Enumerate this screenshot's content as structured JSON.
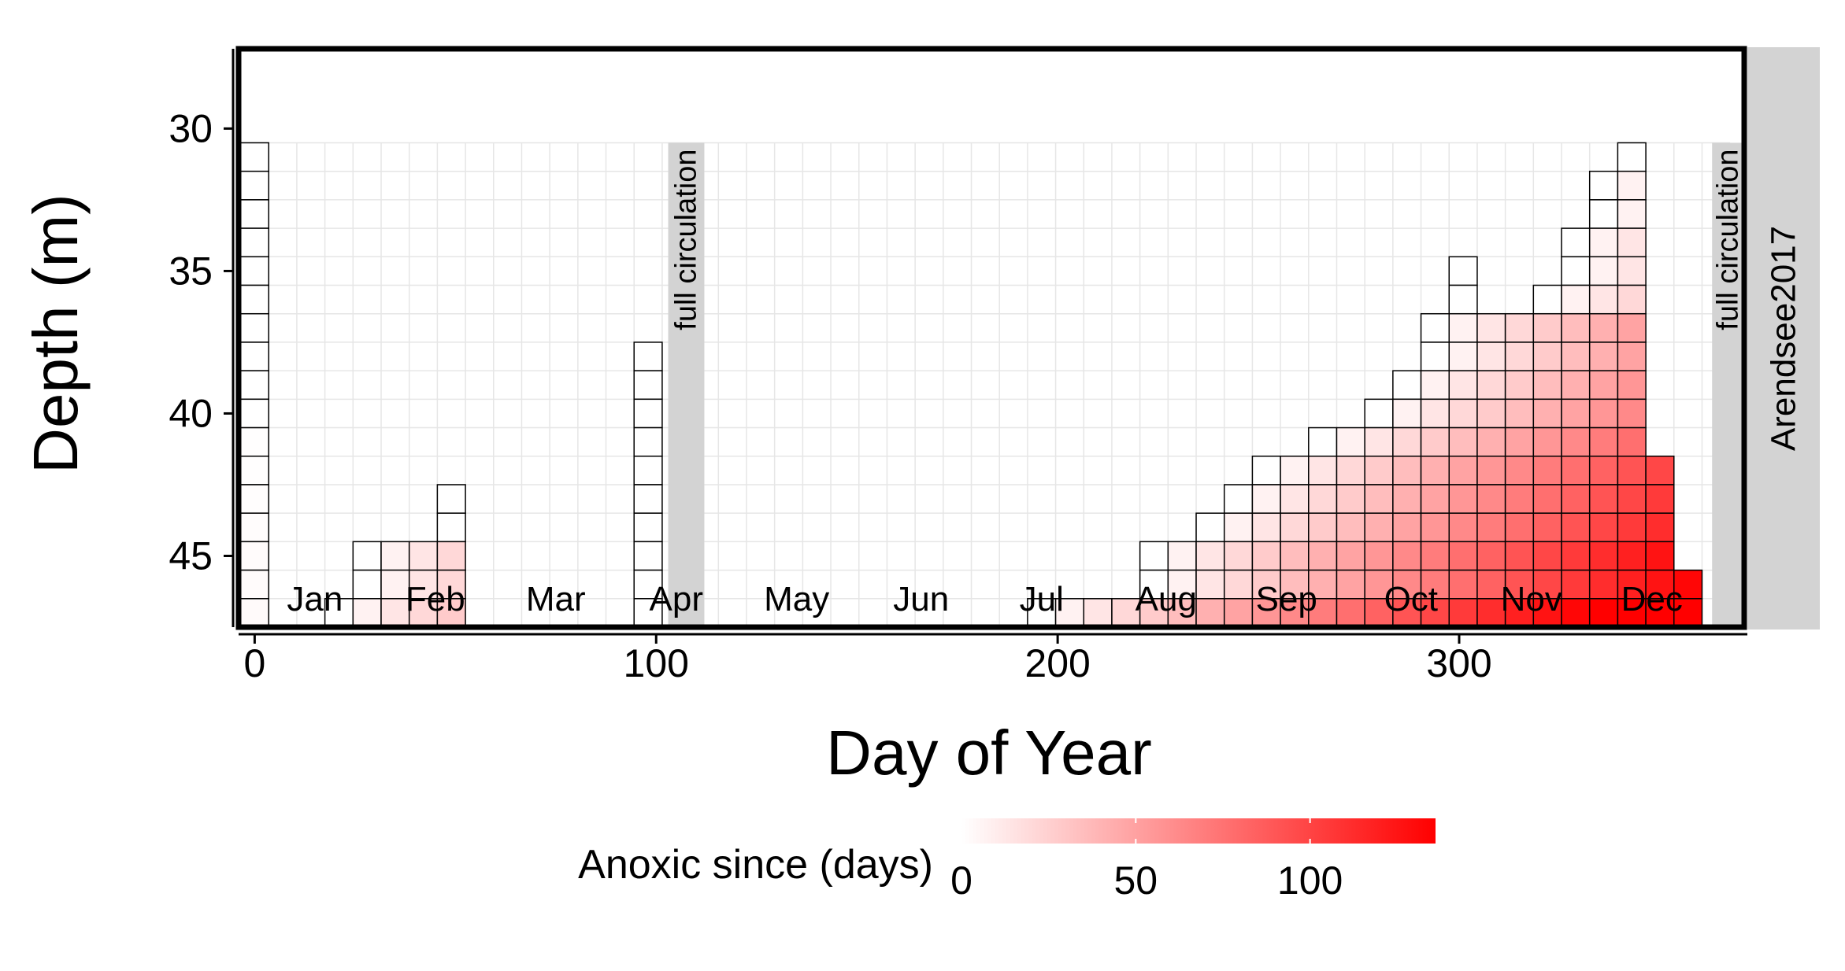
{
  "chart_data": {
    "type": "heatmap",
    "xlabel": "Day of Year",
    "ylabel": "Depth (m)",
    "xlim": [
      -4,
      371
    ],
    "ylim": [
      27.2,
      47.5
    ],
    "y_reversed": true,
    "x_ticks": [
      0,
      100,
      200,
      300
    ],
    "x_tick_labels": [
      "0",
      "100",
      "200",
      "300"
    ],
    "y_ticks": [
      30,
      35,
      40,
      45
    ],
    "y_tick_labels": [
      "30",
      "35",
      "40",
      "45"
    ],
    "grid": true,
    "facet_label": "Arendsee2017",
    "month_labels": [
      {
        "label": "Jan",
        "day": 15
      },
      {
        "label": "Feb",
        "day": 45
      },
      {
        "label": "Mar",
        "day": 75
      },
      {
        "label": "Apr",
        "day": 105
      },
      {
        "label": "May",
        "day": 135
      },
      {
        "label": "Jun",
        "day": 166
      },
      {
        "label": "Jul",
        "day": 196
      },
      {
        "label": "Aug",
        "day": 227
      },
      {
        "label": "Sep",
        "day": 257
      },
      {
        "label": "Oct",
        "day": 288
      },
      {
        "label": "Nov",
        "day": 318
      },
      {
        "label": "Dec",
        "day": 348
      }
    ],
    "annotations": [
      {
        "text": "full circulation",
        "day_start": 103,
        "day_end": 112
      },
      {
        "text": "full circulation",
        "day_start": 363,
        "day_end": 371
      }
    ],
    "cell_width_days": 7,
    "cell_height_m": 1,
    "anoxic_columns": [
      {
        "day": 0,
        "top_depth": 31
      },
      {
        "day": 21,
        "top_depth": 47
      },
      {
        "day": 28,
        "top_depth": 45
      },
      {
        "day": 35,
        "top_depth": 45
      },
      {
        "day": 42,
        "top_depth": 45
      },
      {
        "day": 49,
        "top_depth": 43
      },
      {
        "day": 98,
        "top_depth": 38
      },
      {
        "day": 196,
        "top_depth": 47
      },
      {
        "day": 203,
        "top_depth": 47
      },
      {
        "day": 210,
        "top_depth": 47
      },
      {
        "day": 217,
        "top_depth": 47
      },
      {
        "day": 224,
        "top_depth": 45
      },
      {
        "day": 231,
        "top_depth": 45
      },
      {
        "day": 238,
        "top_depth": 44
      },
      {
        "day": 245,
        "top_depth": 43
      },
      {
        "day": 252,
        "top_depth": 42
      },
      {
        "day": 259,
        "top_depth": 42
      },
      {
        "day": 266,
        "top_depth": 41
      },
      {
        "day": 273,
        "top_depth": 41
      },
      {
        "day": 280,
        "top_depth": 40
      },
      {
        "day": 287,
        "top_depth": 39
      },
      {
        "day": 294,
        "top_depth": 37
      },
      {
        "day": 301,
        "top_depth": 35
      },
      {
        "day": 308,
        "top_depth": 37
      },
      {
        "day": 315,
        "top_depth": 37
      },
      {
        "day": 322,
        "top_depth": 36
      },
      {
        "day": 329,
        "top_depth": 34
      },
      {
        "day": 336,
        "top_depth": 32
      },
      {
        "day": 343,
        "top_depth": 31
      },
      {
        "day": 350,
        "top_depth": 42
      },
      {
        "day": 357,
        "top_depth": 46
      }
    ],
    "fill_scale": {
      "name": "Anoxic since (days)",
      "min": 0,
      "max": 136,
      "breaks": [
        0,
        50,
        100
      ],
      "low_color": "#ffffff",
      "high_color": "#ff0000"
    },
    "colors": {
      "circulation_band": "#d3d3d3",
      "grid_line": "#e6e6e6",
      "cell_border": "#000000",
      "strip_background": "#d3d3d3"
    }
  }
}
